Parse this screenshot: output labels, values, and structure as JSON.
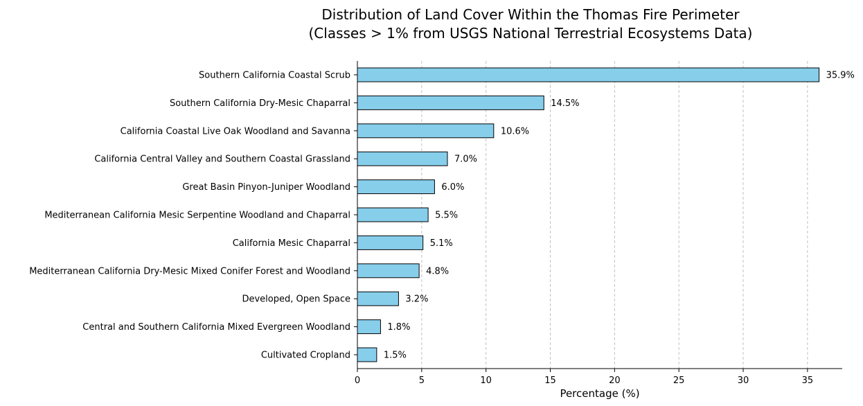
{
  "chart_data": {
    "type": "bar",
    "orientation": "horizontal",
    "title": "Distribution of Land Cover Within the Thomas Fire Perimeter",
    "subtitle": "(Classes > 1% from USGS National Terrestrial Ecosystems Data)",
    "xlabel": "Percentage (%)",
    "ylabel": "",
    "xlim": [
      0,
      37.7
    ],
    "xticks": [
      "0",
      "5",
      "10",
      "15",
      "20",
      "25",
      "30",
      "35"
    ],
    "grid": "vertical dashed",
    "categories": [
      "Southern California Coastal Scrub",
      "Southern California Dry-Mesic Chaparral",
      "California Coastal Live Oak Woodland and Savanna",
      "California Central Valley and Southern Coastal Grassland",
      "Great Basin Pinyon-Juniper Woodland",
      "Mediterranean California Mesic Serpentine Woodland and Chaparral",
      "California Mesic Chaparral",
      "Mediterranean California Dry-Mesic Mixed Conifer Forest and Woodland",
      "Developed, Open Space",
      "Central and Southern California Mixed Evergreen Woodland",
      "Cultivated Cropland"
    ],
    "values": [
      35.9,
      14.5,
      10.6,
      7.0,
      6.0,
      5.5,
      5.1,
      4.8,
      3.2,
      1.8,
      1.5
    ],
    "value_labels": [
      "35.9%",
      "14.5%",
      "10.6%",
      "7.0%",
      "6.0%",
      "5.5%",
      "5.1%",
      "4.8%",
      "3.2%",
      "1.8%",
      "1.5%"
    ],
    "colors": {
      "bar": "#87ceeb",
      "edge": "#000000",
      "grid": "#c0c0c0"
    }
  }
}
